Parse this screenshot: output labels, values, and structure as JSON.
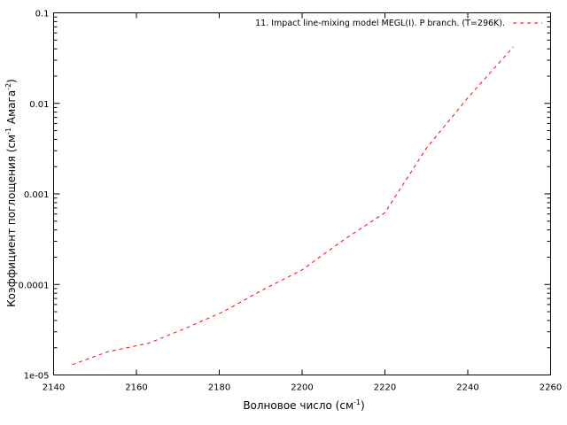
{
  "chart_data": {
    "type": "line",
    "title": "",
    "xlabel": "Волновое число (см",
    "xlabel_sup": "-1",
    "xlabel_tail": ")",
    "ylabel_parts": [
      "Коэффициент поглощения (см",
      "-1",
      " Амага",
      "-2",
      ")"
    ],
    "xlim": [
      2140,
      2260
    ],
    "ylim": [
      1e-05,
      0.1
    ],
    "yscale": "log",
    "x_ticks": [
      "2140",
      "2160",
      "2180",
      "2200",
      "2220",
      "2240",
      "2260"
    ],
    "y_ticks": [
      "1e-05",
      "0.0001",
      "0.001",
      "0.01",
      "0.1"
    ],
    "grid": false,
    "legend_position": "top-right",
    "series": [
      {
        "name": "11. Impact line-mixing model MEGL(I). P branch. (T=296K).",
        "color": "#ff0000",
        "style": "dashed",
        "x": [
          2144.5,
          2153,
          2163,
          2172,
          2181,
          2190,
          2200,
          2210,
          2220,
          2230,
          2240,
          2251
        ],
        "y": [
          1.3e-05,
          1.8e-05,
          2.25e-05,
          3.3e-05,
          5e-05,
          8.5e-05,
          0.000145,
          0.00031,
          0.00062,
          0.0032,
          0.0115,
          0.042
        ]
      }
    ]
  }
}
